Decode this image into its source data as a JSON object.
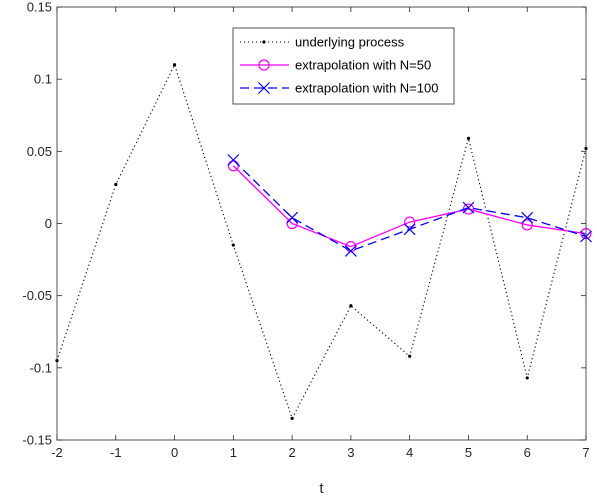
{
  "chart_data": {
    "type": "line",
    "title": "",
    "xlabel": "t",
    "ylabel": "",
    "xlim": [
      -2,
      7
    ],
    "ylim": [
      -0.15,
      0.15
    ],
    "x_ticks": [
      -2,
      -1,
      0,
      1,
      2,
      3,
      4,
      5,
      6,
      7
    ],
    "x_tick_labels": [
      "-2",
      "-1",
      "0",
      "1",
      "2",
      "3",
      "4",
      "5",
      "6",
      "7"
    ],
    "y_ticks": [
      -0.15,
      -0.1,
      -0.05,
      0,
      0.05,
      0.1,
      0.15
    ],
    "y_tick_labels": [
      "-0.15",
      "-0.1",
      "-0.05",
      "0",
      "0.05",
      "0.1",
      "0.15"
    ],
    "grid": false,
    "legend_position": "top-center",
    "series": [
      {
        "name": "underlying process",
        "color": "#000000",
        "line_style": "dotted",
        "marker": "dot",
        "x": [
          -2,
          -1,
          0,
          1,
          2,
          3,
          4,
          5,
          6,
          7
        ],
        "y": [
          -0.095,
          0.027,
          0.11,
          -0.015,
          -0.135,
          -0.057,
          -0.092,
          0.059,
          -0.107,
          0.052
        ]
      },
      {
        "name": "extrapolation with N=50",
        "color": "#ff00ff",
        "line_style": "solid",
        "marker": "circle",
        "x": [
          1,
          2,
          3,
          4,
          5,
          6,
          7
        ],
        "y": [
          0.04,
          0.0,
          -0.016,
          0.001,
          0.01,
          -0.001,
          -0.007
        ]
      },
      {
        "name": "extrapolation with N=100",
        "color": "#0000ff",
        "line_style": "dashed",
        "marker": "x",
        "x": [
          1,
          2,
          3,
          4,
          5,
          6,
          7
        ],
        "y": [
          0.044,
          0.004,
          -0.019,
          -0.004,
          0.011,
          0.004,
          -0.009
        ]
      }
    ]
  }
}
